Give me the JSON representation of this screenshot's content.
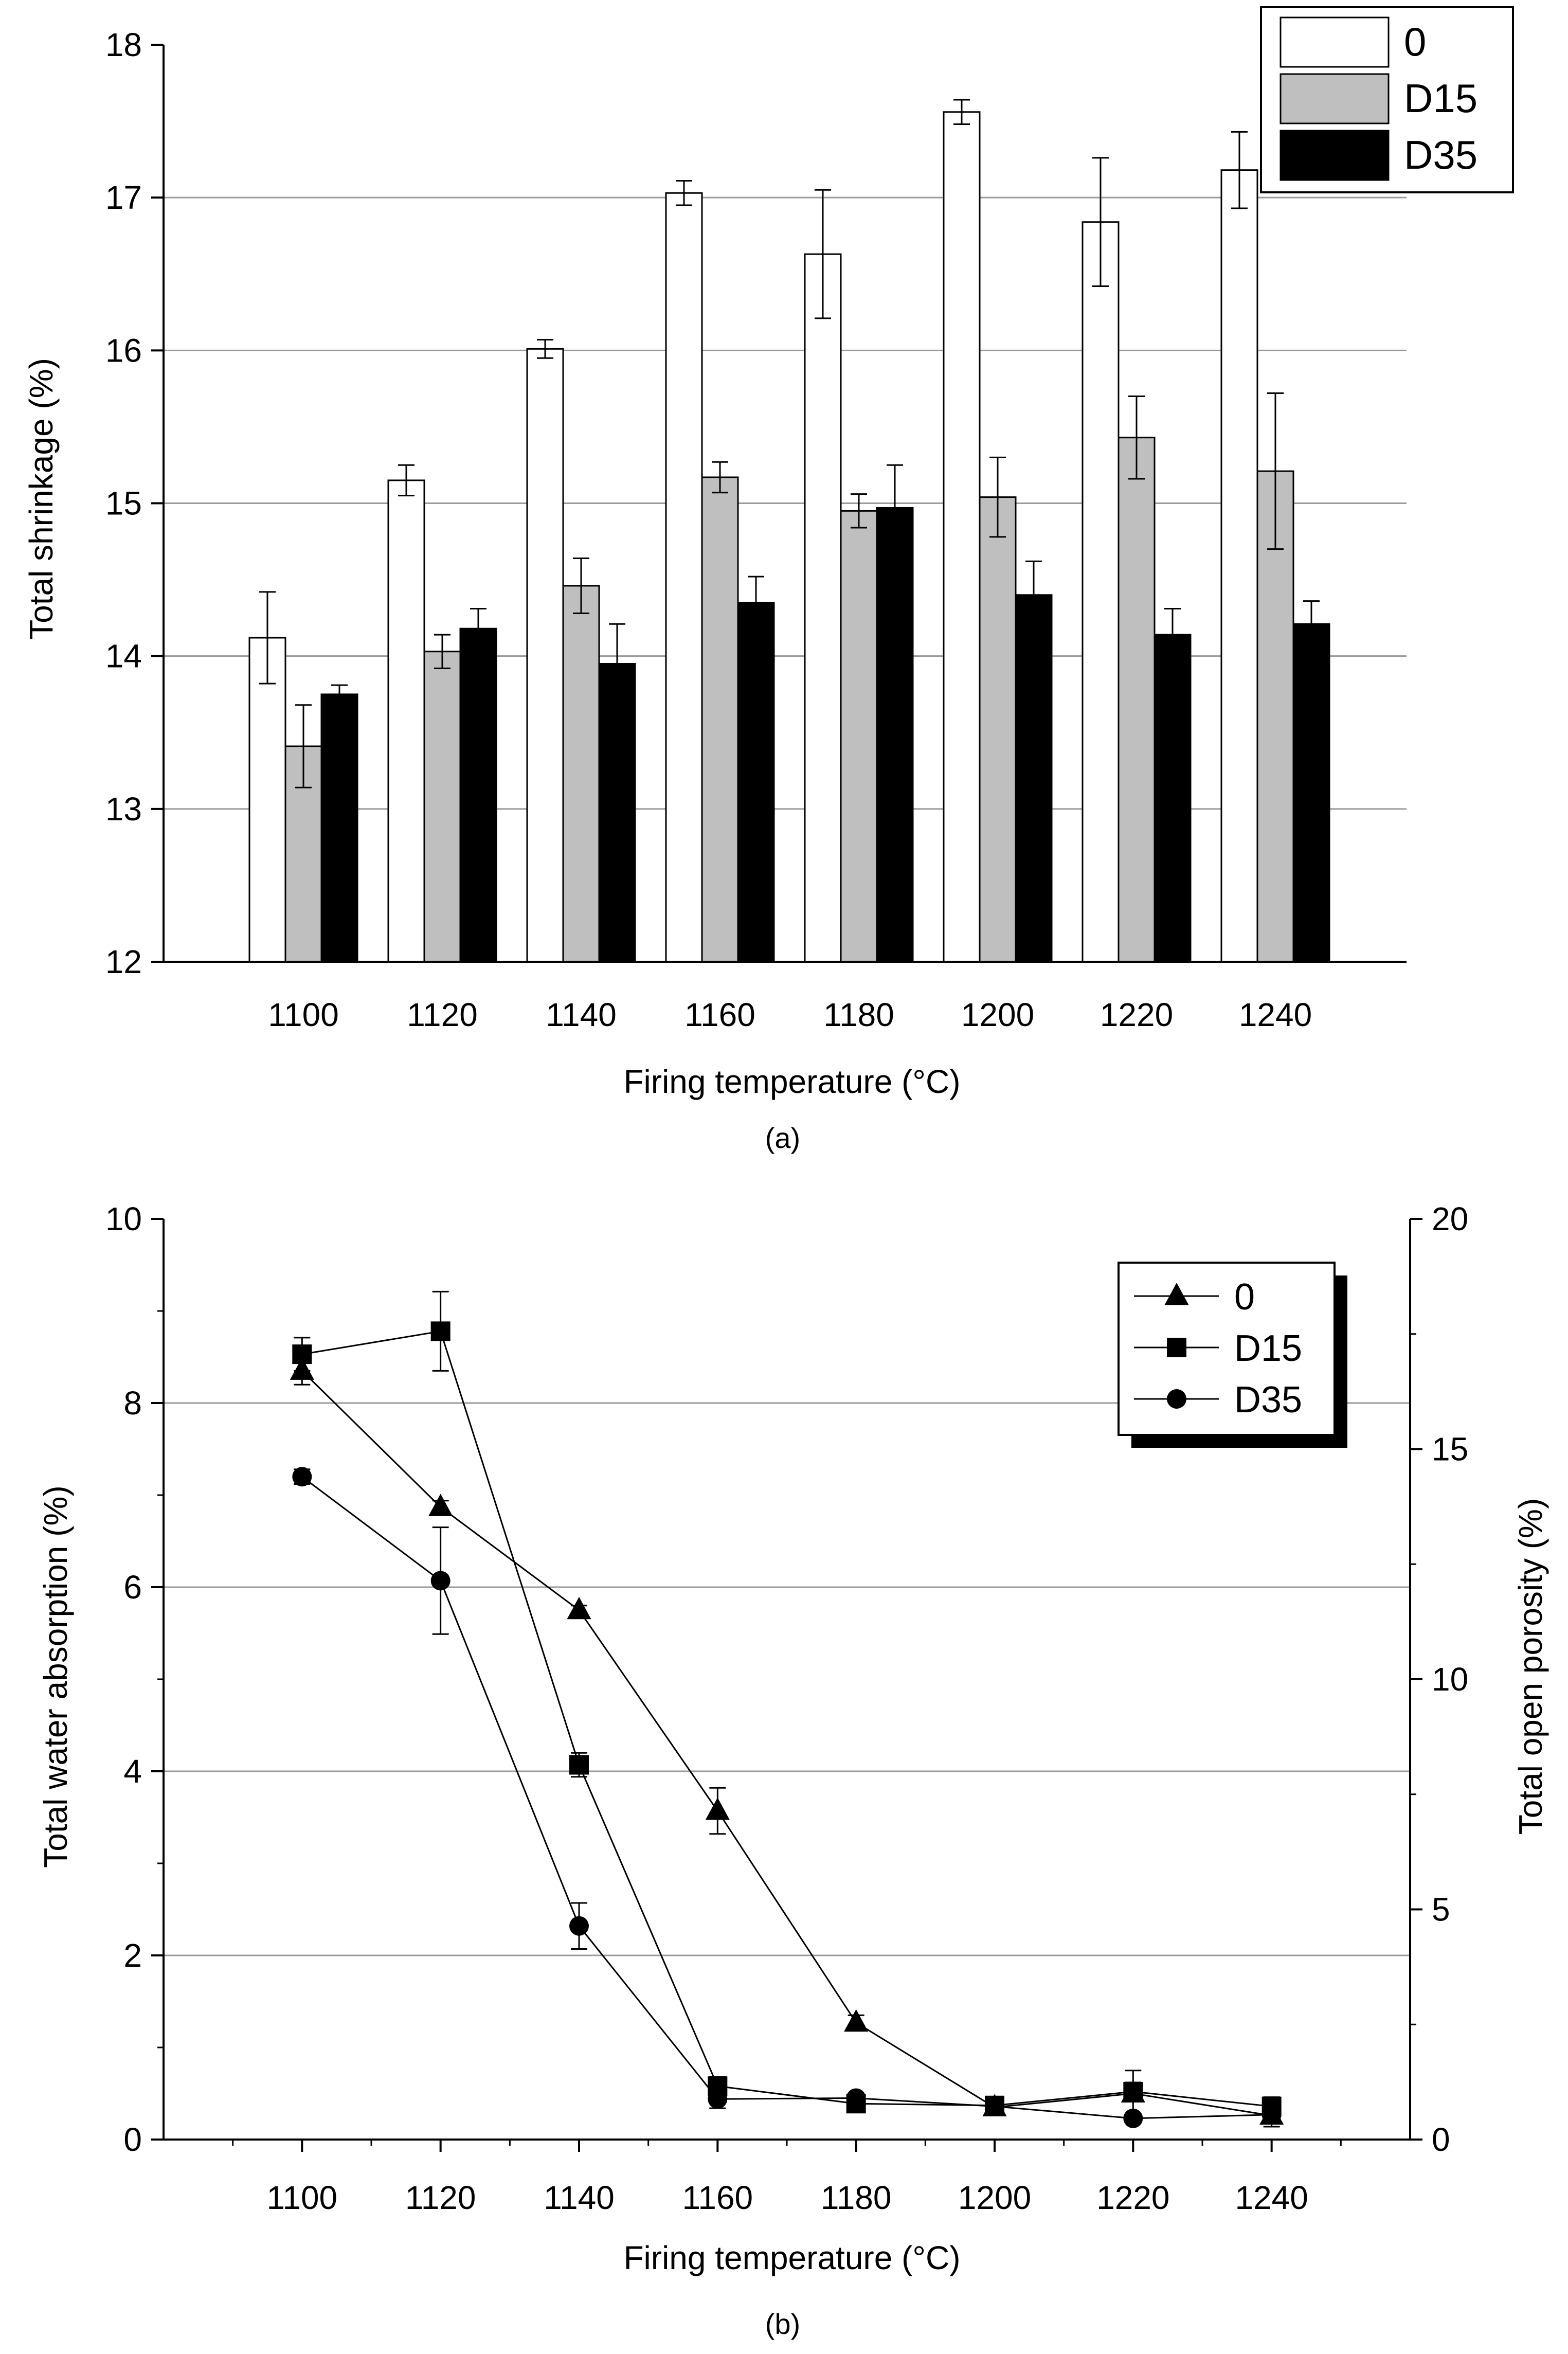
{
  "chart_data": [
    {
      "type": "bar",
      "panel_label": "(a)",
      "xlabel": "Firing temperature (°C)",
      "ylabel": "Total shrinkage (%)",
      "categories": [
        "1100",
        "1120",
        "1140",
        "1160",
        "1180",
        "1200",
        "1220",
        "1240"
      ],
      "ylim": [
        12,
        18
      ],
      "yticks": [
        12,
        13,
        14,
        15,
        16,
        17,
        18
      ],
      "grid": true,
      "legend_position": "top-right",
      "series": [
        {
          "name": "0",
          "color": "#ffffff",
          "values": [
            14.12,
            15.15,
            16.01,
            17.03,
            16.63,
            17.56,
            16.84,
            17.18
          ],
          "errors": [
            0.3,
            0.1,
            0.06,
            0.08,
            0.42,
            0.08,
            0.42,
            0.25
          ]
        },
        {
          "name": "D15",
          "color": "#bfbfbf",
          "values": [
            13.41,
            14.03,
            14.46,
            15.17,
            14.95,
            15.04,
            15.43,
            15.21
          ],
          "errors": [
            0.27,
            0.11,
            0.18,
            0.1,
            0.11,
            0.26,
            0.27,
            0.51
          ]
        },
        {
          "name": "D35",
          "color": "#000000",
          "values": [
            13.75,
            14.18,
            13.95,
            14.35,
            14.97,
            14.4,
            14.14,
            14.21
          ],
          "errors": [
            0.06,
            0.13,
            0.26,
            0.17,
            0.28,
            0.22,
            0.17,
            0.15
          ]
        }
      ]
    },
    {
      "type": "line",
      "panel_label": "(b)",
      "xlabel": "Firing temperature (°C)",
      "ylabel": "Total water absorption  (%)",
      "y2label": "Total open porosity (%)",
      "x": [
        1100,
        1120,
        1140,
        1160,
        1180,
        1200,
        1220,
        1240
      ],
      "xlim": [
        1080,
        1260
      ],
      "xticks": [
        1100,
        1120,
        1140,
        1160,
        1180,
        1200,
        1220,
        1240
      ],
      "ylim": [
        0,
        10
      ],
      "yticks": [
        0,
        2,
        4,
        6,
        8,
        10
      ],
      "y2lim": [
        0,
        20
      ],
      "y2ticks": [
        0,
        5,
        10,
        15,
        20
      ],
      "grid": true,
      "legend_position": "top-right",
      "series": [
        {
          "name": "0",
          "marker": "triangle",
          "values": [
            8.35,
            6.87,
            5.75,
            3.57,
            1.27,
            0.35,
            0.5,
            0.26
          ],
          "errors": [
            0.15,
            0.07,
            0.05,
            0.25,
            0.08,
            0.05,
            0.25,
            0.12
          ]
        },
        {
          "name": "D15",
          "marker": "square",
          "values": [
            8.53,
            8.78,
            4.07,
            0.58,
            0.39,
            0.37,
            0.52,
            0.36
          ],
          "errors": [
            0.18,
            0.43,
            0.13,
            0.1,
            0.05,
            0.05,
            0.1,
            0.1
          ]
        },
        {
          "name": "D35",
          "marker": "circle",
          "values": [
            7.2,
            6.07,
            2.32,
            0.44,
            0.45,
            0.36,
            0.23,
            0.27
          ],
          "errors": [
            0.08,
            0.58,
            0.25,
            0.1,
            0.05,
            0.05,
            0.05,
            0.05
          ]
        }
      ]
    }
  ]
}
